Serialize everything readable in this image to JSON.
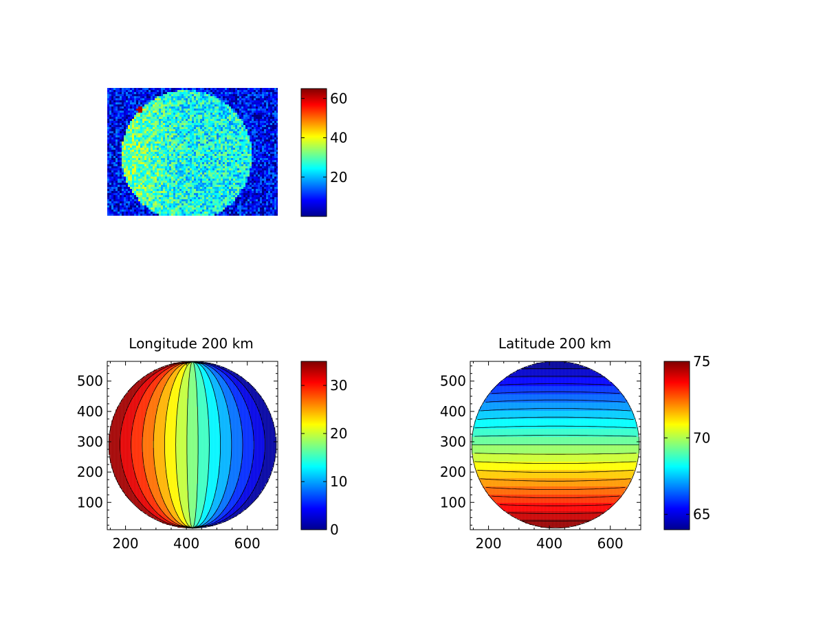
{
  "chart_data": [
    {
      "type": "heatmap",
      "title": "",
      "description_values": "noisy image of a bright disk",
      "colormap": "jet",
      "clim": [
        0,
        65
      ],
      "colorbar_ticks": [
        20,
        40,
        60
      ],
      "axes_visible": false
    },
    {
      "type": "heatmap",
      "title": "Longitude 200 km",
      "colormap": "jet",
      "contour_levels": 15,
      "clim": [
        0,
        35
      ],
      "xlim": [
        140,
        700
      ],
      "ylim": [
        10,
        565
      ],
      "xticks": [
        200,
        400,
        600
      ],
      "yticks": [
        100,
        200,
        300,
        400,
        500
      ],
      "colorbar_ticks": [
        0,
        10,
        20,
        30
      ],
      "disk_center": [
        420,
        290
      ],
      "disk_radius": 275
    },
    {
      "type": "heatmap",
      "title": "Latitude 200 km",
      "colormap": "jet",
      "contour_levels": 20,
      "clim": [
        64,
        75
      ],
      "xlim": [
        140,
        700
      ],
      "ylim": [
        10,
        565
      ],
      "xticks": [
        200,
        400,
        600
      ],
      "yticks": [
        100,
        200,
        300,
        400,
        500
      ],
      "colorbar_ticks": [
        65,
        70,
        75
      ],
      "disk_center": [
        420,
        290
      ],
      "disk_radius": 275
    }
  ]
}
